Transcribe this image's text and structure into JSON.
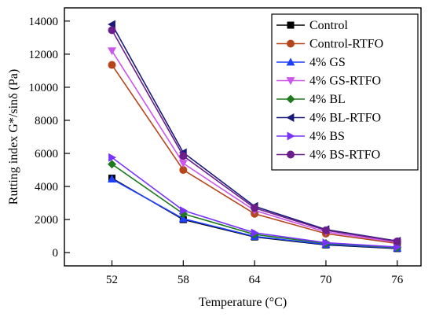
{
  "chart_data": {
    "type": "line",
    "xlabel": "Temperature (°C)",
    "ylabel": "Rutting index G*/sinδ (Pa)",
    "x": [
      52,
      58,
      64,
      70,
      76
    ],
    "xlim": [
      48,
      78
    ],
    "ylim": [
      -800,
      14800
    ],
    "xticks": [
      "52",
      "58",
      "64",
      "70",
      "76"
    ],
    "yticks": [
      "0",
      "2000",
      "4000",
      "6000",
      "8000",
      "10000",
      "12000",
      "14000"
    ],
    "grid": false,
    "legend_position": "top-right",
    "series": [
      {
        "name": "Control",
        "color": "#000000",
        "marker": "square",
        "values": [
          4500,
          2000,
          950,
          470,
          250
        ]
      },
      {
        "name": "Control-RTFO",
        "color": "#b5451b",
        "marker": "circle",
        "values": [
          11350,
          5000,
          2350,
          1150,
          560
        ]
      },
      {
        "name": "4% GS",
        "color": "#1f3fff",
        "marker": "triangle-up",
        "values": [
          4450,
          2050,
          980,
          500,
          280
        ]
      },
      {
        "name": "4% GS-RTFO",
        "color": "#cc55ee",
        "marker": "triangle-down",
        "values": [
          12200,
          5400,
          2550,
          1250,
          620
        ]
      },
      {
        "name": "4% BL",
        "color": "#1f7a1f",
        "marker": "diamond",
        "values": [
          5350,
          2350,
          1100,
          560,
          310
        ]
      },
      {
        "name": "4% BL-RTFO",
        "color": "#1a1a7a",
        "marker": "triangle-left",
        "values": [
          13800,
          6050,
          2800,
          1400,
          700
        ]
      },
      {
        "name": "4% BS",
        "color": "#7a33ff",
        "marker": "triangle-right",
        "values": [
          5750,
          2550,
          1200,
          600,
          340
        ]
      },
      {
        "name": "4% BS-RTFO",
        "color": "#6a1f8a",
        "marker": "circle",
        "values": [
          13450,
          5850,
          2700,
          1350,
          680
        ]
      }
    ]
  }
}
